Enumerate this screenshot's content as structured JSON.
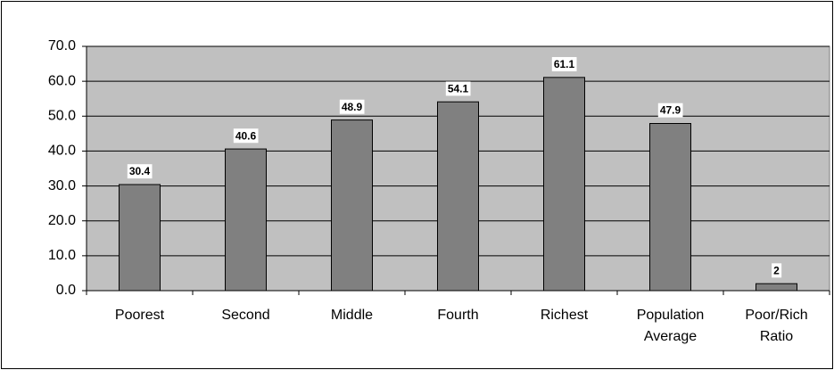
{
  "chart_data": {
    "type": "bar",
    "categories": [
      "Poorest",
      "Second",
      "Middle",
      "Fourth",
      "Richest",
      "Population Average",
      "Poor/Rich Ratio"
    ],
    "values": [
      30.4,
      40.6,
      48.9,
      54.1,
      61.1,
      47.9,
      2
    ],
    "color": "#808080",
    "background": "#c0c0c0",
    "ylim": [
      0,
      70
    ],
    "yticks": [
      {
        "value": 0,
        "label": "0.0"
      },
      {
        "value": 10,
        "label": "10.0"
      },
      {
        "value": 20,
        "label": "20.0"
      },
      {
        "value": 30,
        "label": "30.0"
      },
      {
        "value": 40,
        "label": "40.0"
      },
      {
        "value": 50,
        "label": "50.0"
      },
      {
        "value": 60,
        "label": "60.0"
      },
      {
        "value": 70,
        "label": "70.0"
      }
    ],
    "grid": true
  }
}
